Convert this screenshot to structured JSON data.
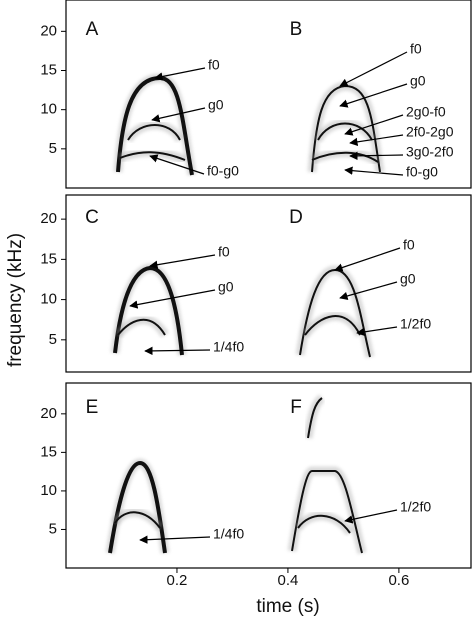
{
  "chart_data": [
    {
      "type": "spectrogram",
      "ylabel": "frequency (kHz)",
      "panels": [
        "A",
        "B"
      ],
      "xlim": [
        0,
        0.73
      ],
      "ylim": [
        0,
        24
      ],
      "yticks": [
        5,
        10,
        15,
        20
      ],
      "annotations": [
        "f0",
        "g0",
        "f0-g0",
        "f0",
        "g0",
        "2g0-f0",
        "2f0-2g0",
        "3g0-2f0",
        "f0-g0"
      ]
    },
    {
      "type": "spectrogram",
      "panels": [
        "C",
        "D"
      ],
      "xlim": [
        0,
        0.73
      ],
      "ylim": [
        1,
        23
      ],
      "yticks": [
        5,
        10,
        15,
        20
      ],
      "annotations": [
        "f0",
        "g0",
        "1/4f0",
        "f0",
        "g0",
        "1/2f0"
      ]
    },
    {
      "type": "spectrogram",
      "panels": [
        "E",
        "F"
      ],
      "xlabel": "time (s)",
      "xlim": [
        0,
        0.73
      ],
      "ylim": [
        0,
        24
      ],
      "yticks": [
        5,
        10,
        15,
        20
      ],
      "xticks": [
        0.2,
        0.4,
        0.6
      ],
      "annotations": [
        "1/4f0",
        "1/2f0"
      ]
    }
  ]
}
